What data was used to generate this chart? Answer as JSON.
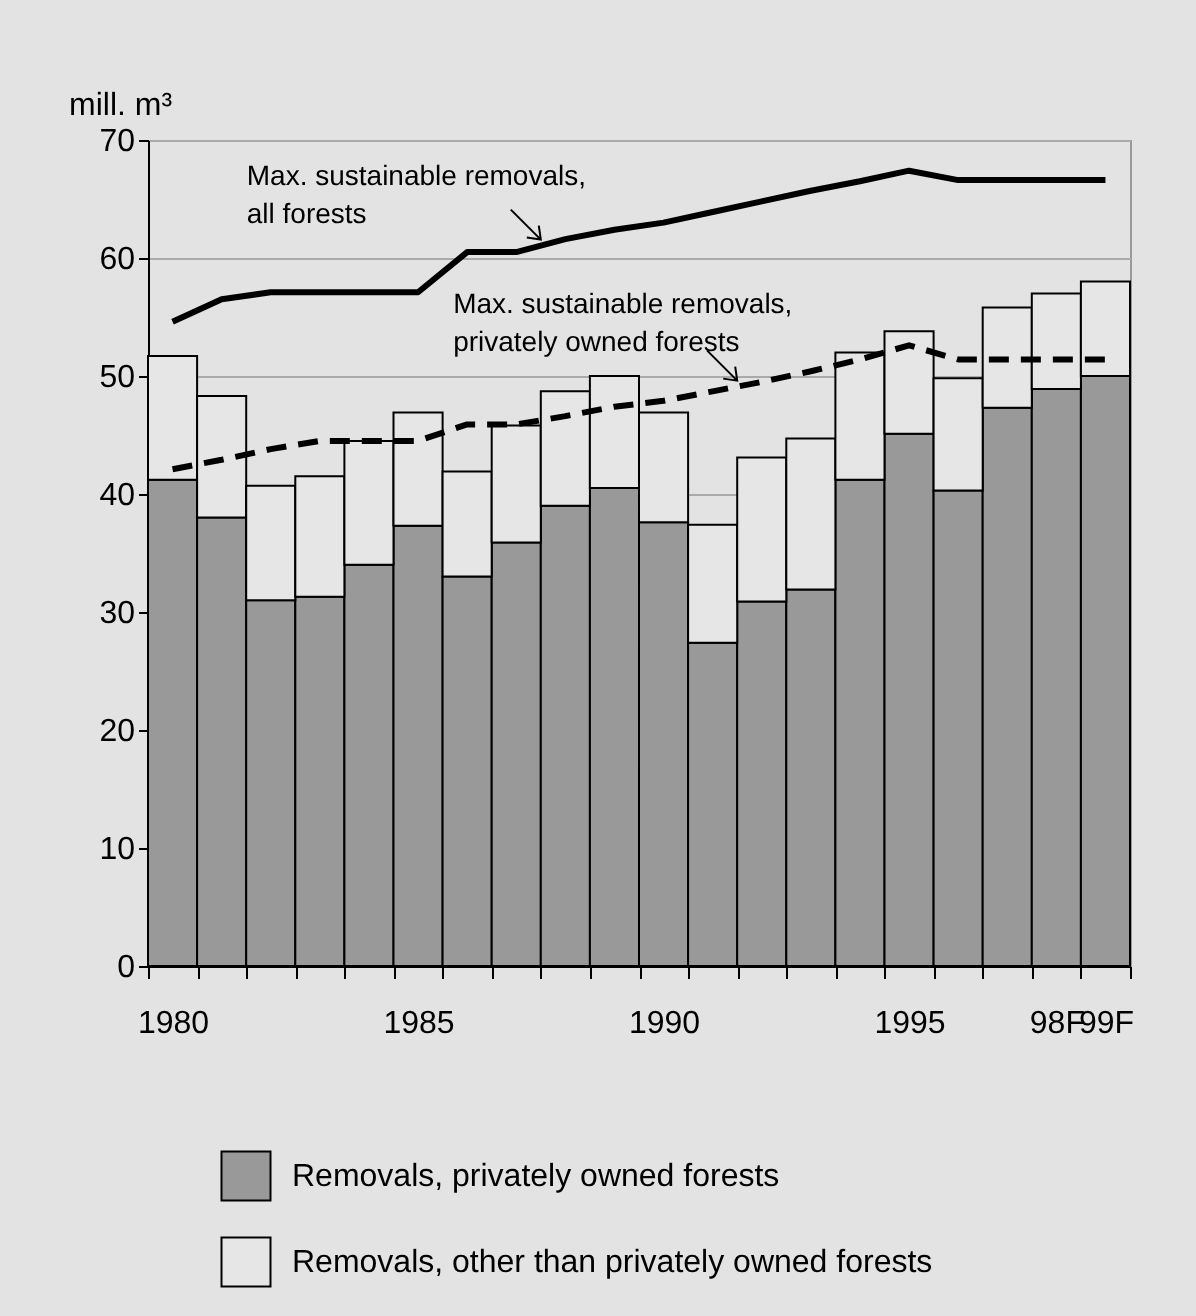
{
  "chart_data": {
    "type": "bar",
    "stacked": true,
    "ylabel": "mill. m³",
    "ylim": [
      0,
      70
    ],
    "yticks": [
      0,
      10,
      20,
      30,
      40,
      50,
      60,
      70
    ],
    "grid": "y",
    "legend": "bottom",
    "categories": [
      "1980",
      null,
      null,
      null,
      null,
      "1985",
      null,
      null,
      null,
      null,
      "1990",
      null,
      null,
      null,
      null,
      "1995",
      null,
      null,
      "98F",
      "99F"
    ],
    "series": [
      {
        "name": "Removals, privately owned forests",
        "type": "bar",
        "color": "#999999",
        "values": [
          41.2,
          38.0,
          31.0,
          31.3,
          34.0,
          37.3,
          33.0,
          35.9,
          39.0,
          40.5,
          37.6,
          27.4,
          30.9,
          31.9,
          41.2,
          45.1,
          40.3,
          47.3,
          48.9,
          50.0
        ]
      },
      {
        "name": "Removals, other than privately owned forests",
        "type": "bar",
        "color": "#e6e6e6",
        "values": [
          10.5,
          10.3,
          9.7,
          10.2,
          10.5,
          9.6,
          8.9,
          9.9,
          9.7,
          9.5,
          9.3,
          10.0,
          12.2,
          12.8,
          10.8,
          8.7,
          9.5,
          8.5,
          8.1,
          8.0
        ]
      },
      {
        "name": "Max. sustainable removals, all forests",
        "type": "line",
        "color": "#000000",
        "line_style": "solid",
        "values": [
          54.6,
          56.5,
          57.1,
          57.1,
          57.1,
          57.1,
          60.5,
          60.5,
          61.6,
          62.4,
          63.0,
          63.9,
          64.8,
          65.7,
          66.5,
          67.4,
          66.6,
          66.6,
          66.6,
          66.6
        ]
      },
      {
        "name": "Max. sustainable removals, privately owned forests",
        "type": "line",
        "color": "#000000",
        "line_style": "dashed",
        "values": [
          42.1,
          42.9,
          43.8,
          44.5,
          44.5,
          44.5,
          45.9,
          45.9,
          46.6,
          47.4,
          47.9,
          48.7,
          49.5,
          50.4,
          51.4,
          52.6,
          51.4,
          51.4,
          51.4,
          51.4
        ]
      }
    ]
  }
}
